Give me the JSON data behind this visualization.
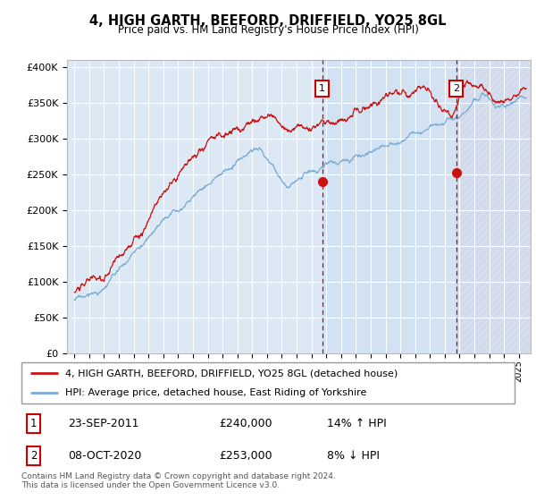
{
  "title": "4, HIGH GARTH, BEEFORD, DRIFFIELD, YO25 8GL",
  "subtitle": "Price paid vs. HM Land Registry's House Price Index (HPI)",
  "background_color": "#dde8f5",
  "plot_bg_color": "#dde8f5",
  "hpi_color": "#7aadd4",
  "price_color": "#cc1111",
  "vline_color": "#cc0000",
  "marker1_x": 2011.72,
  "marker1_y": 240000,
  "marker2_x": 2020.77,
  "marker2_y": 253000,
  "ylim": [
    0,
    410000
  ],
  "xlim": [
    1994.5,
    2025.8
  ],
  "ylabel_ticks": [
    0,
    50000,
    100000,
    150000,
    200000,
    250000,
    300000,
    350000,
    400000
  ],
  "legend_line1": "4, HIGH GARTH, BEEFORD, DRIFFIELD, YO25 8GL (detached house)",
  "legend_line2": "HPI: Average price, detached house, East Riding of Yorkshire",
  "marker1_label": "23-SEP-2011",
  "marker1_price": "£240,000",
  "marker1_hpi": "14% ↑ HPI",
  "marker2_label": "08-OCT-2020",
  "marker2_price": "£253,000",
  "marker2_hpi": "8% ↓ HPI",
  "footnote": "Contains HM Land Registry data © Crown copyright and database right 2024.\nThis data is licensed under the Open Government Licence v3.0."
}
